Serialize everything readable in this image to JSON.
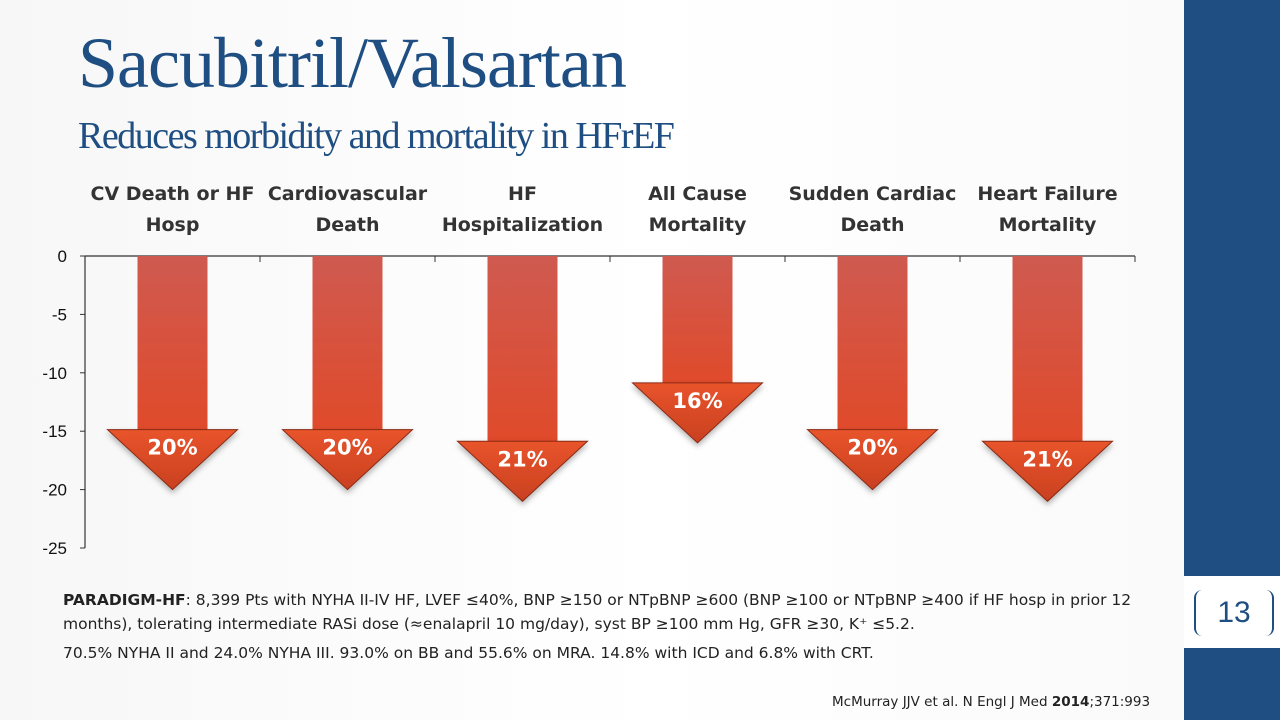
{
  "slide": {
    "title": "Sacubitril/Valsartan",
    "subtitle": "Reduces morbidity and mortality in HFrEF",
    "page_number": "13"
  },
  "colors": {
    "title": "#1f4e82",
    "sidebar": "#1f4e82",
    "arrow_top": "#cf5a50",
    "arrow_bottom": "#e04a2a"
  },
  "chart_data": {
    "type": "bar",
    "categories": [
      [
        "CV Death or HF",
        "Hosp"
      ],
      [
        "Cardiovascular",
        "Death"
      ],
      [
        "HF",
        "Hospitalization"
      ],
      [
        "All Cause",
        "Mortality"
      ],
      [
        "Sudden Cardiac",
        "Death"
      ],
      [
        "Heart Failure",
        "Mortality"
      ]
    ],
    "values": [
      -20,
      -20,
      -21,
      -16,
      -20,
      -21
    ],
    "data_labels": [
      "20%",
      "20%",
      "21%",
      "16%",
      "20%",
      "21%"
    ],
    "ylim": [
      -25,
      0
    ],
    "yticks": [
      "0",
      "-5",
      "-10",
      "-15",
      "-20",
      "-25"
    ],
    "ytick_values": [
      0,
      -5,
      -10,
      -15,
      -20,
      -25
    ],
    "category_labels_position": "top",
    "grid": false,
    "legend": "none"
  },
  "study": {
    "name": "PARADIGM-HF",
    "description": ": 8,399 Pts with NYHA II-IV HF, LVEF ≤40%, BNP ≥150 or NTpBNP ≥600 (BNP ≥100 or NTpBNP ≥400 if HF hosp in prior 12 months), tolerating intermediate RASi dose (≈enalapril 10 mg/day), syst BP ≥100 mm Hg, GFR ≥30, K⁺ ≤5.2.",
    "baseline": "70.5% NYHA II and 24.0% NYHA III. 93.0% on BB and 55.6% on MRA. 14.8% with ICD and 6.8% with CRT."
  },
  "citation": {
    "authors": "McMurray JJV et al. N Engl J Med ",
    "year": "2014",
    "volume_pages": ";371:993"
  }
}
